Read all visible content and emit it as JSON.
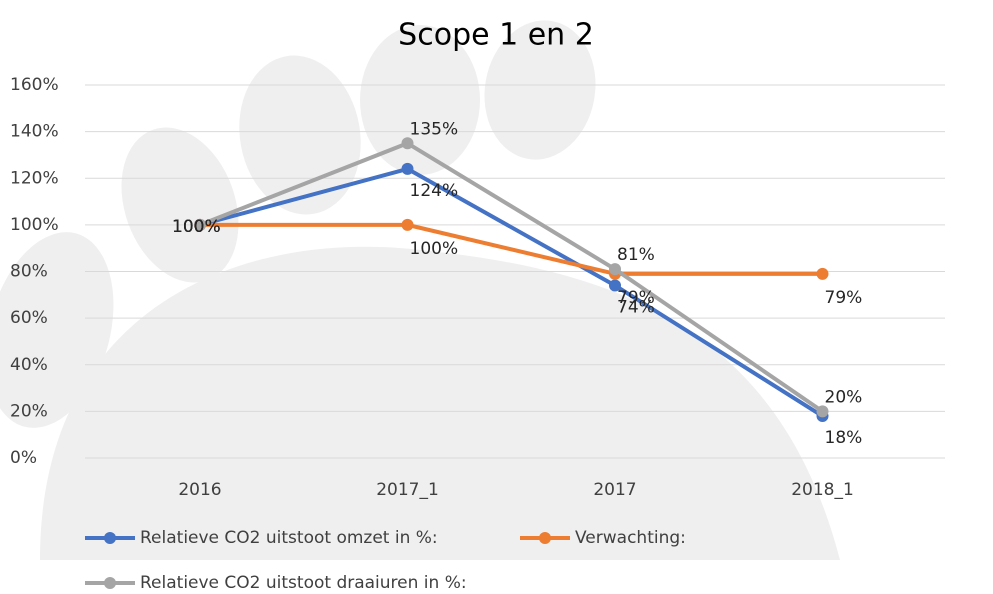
{
  "chart_data": {
    "type": "line",
    "title": "Scope 1 en 2",
    "categories": [
      "2016",
      "2017_1",
      "2017",
      "2018_1"
    ],
    "series": [
      {
        "name": "Relatieve CO2 uitstoot omzet in %:",
        "color": "#4472c4",
        "values": [
          100,
          124,
          74,
          18
        ],
        "value_labels": [
          "100%",
          "124%",
          "74%",
          "18%"
        ]
      },
      {
        "name": "Verwachting:",
        "color": "#ed7d31",
        "values": [
          100,
          100,
          79,
          79
        ],
        "value_labels": [
          "100%",
          "100%",
          "79%",
          "79%"
        ]
      },
      {
        "name": "Relatieve CO2 uitstoot draaiuren in %:",
        "color": "#a5a5a5",
        "values": [
          100,
          135,
          81,
          20
        ],
        "value_labels": [
          "100%",
          "135%",
          "81%",
          "20%"
        ]
      }
    ],
    "ylim": [
      0,
      160
    ],
    "yticks": [
      {
        "value": 0,
        "label": "0%"
      },
      {
        "value": 20,
        "label": "20%"
      },
      {
        "value": 40,
        "label": "40%"
      },
      {
        "value": 60,
        "label": "60%"
      },
      {
        "value": 80,
        "label": "80%"
      },
      {
        "value": 100,
        "label": "100%"
      },
      {
        "value": 120,
        "label": "120%"
      },
      {
        "value": 140,
        "label": "140%"
      },
      {
        "value": 160,
        "label": "160%"
      }
    ],
    "grid": true
  }
}
